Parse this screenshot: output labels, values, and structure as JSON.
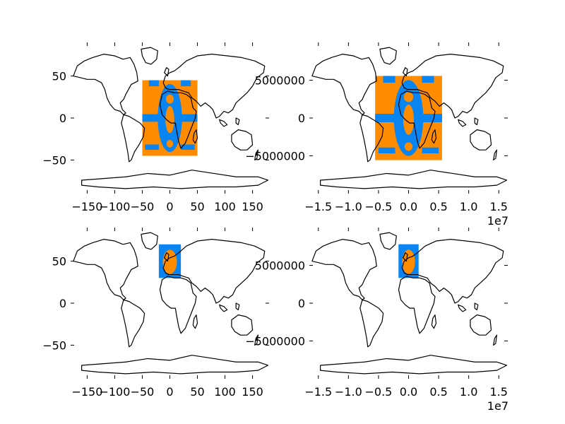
{
  "figure": {
    "title": ""
  },
  "colors": {
    "blue": "#0a84f0",
    "orange": "#ff8c00",
    "coastline": "#000000"
  },
  "panels": [
    {
      "id": "top-left",
      "projection": "plate-carree-degrees",
      "xlim": [
        -180,
        180
      ],
      "ylim": [
        -90,
        90
      ],
      "xticks": [
        -150,
        -100,
        -50,
        0,
        50,
        100,
        150
      ],
      "xtick_labels": [
        "−150",
        "−100",
        "−50",
        "0",
        "50",
        "100",
        "150"
      ],
      "yticks": [
        -50,
        0,
        50
      ],
      "ytick_labels": [
        "−50",
        "0",
        "50"
      ],
      "offset_label": "",
      "field_extent": {
        "lon": [
          -50,
          50
        ],
        "lat": [
          -45,
          45
        ]
      },
      "field_kind": "global"
    },
    {
      "id": "top-right",
      "projection": "plate-carree-meters",
      "xlim": [
        -16500000.0,
        16500000.0
      ],
      "ylim": [
        -10000000.0,
        10000000.0
      ],
      "xticks": [
        -15000000.0,
        -10000000.0,
        -5000000.0,
        0,
        5000000.0,
        10000000.0,
        15000000.0
      ],
      "xtick_labels": [
        "−1.5",
        "−1.0",
        "−0.5",
        "0.0",
        "0.5",
        "1.0",
        "1.5"
      ],
      "yticks": [
        -5000000,
        0,
        5000000
      ],
      "ytick_labels": [
        "−5000000",
        "0",
        "5000000"
      ],
      "offset_label": "1e7",
      "field_extent": {
        "lon": [
          -50,
          50
        ],
        "lat": [
          -50,
          50
        ]
      },
      "field_kind": "global"
    },
    {
      "id": "bottom-left",
      "projection": "plate-carree-degrees",
      "xlim": [
        -180,
        180
      ],
      "ylim": [
        -90,
        90
      ],
      "xticks": [
        -150,
        -100,
        -50,
        0,
        50,
        100,
        150
      ],
      "xtick_labels": [
        "−150",
        "−100",
        "−50",
        "0",
        "50",
        "100",
        "150"
      ],
      "yticks": [
        -50,
        0,
        50
      ],
      "ytick_labels": [
        "−50",
        "0",
        "50"
      ],
      "offset_label": "",
      "field_extent": {
        "lon": [
          -20,
          20
        ],
        "lat": [
          30,
          70
        ]
      },
      "field_kind": "regional"
    },
    {
      "id": "bottom-right",
      "projection": "plate-carree-meters",
      "xlim": [
        -16500000.0,
        16500000.0
      ],
      "ylim": [
        -10000000.0,
        10000000.0
      ],
      "xticks": [
        -15000000.0,
        -10000000.0,
        -5000000.0,
        0,
        5000000.0,
        10000000.0,
        15000000.0
      ],
      "xtick_labels": [
        "−1.5",
        "−1.0",
        "−0.5",
        "0.0",
        "0.5",
        "1.0",
        "1.5"
      ],
      "yticks": [
        -5000000,
        0,
        5000000
      ],
      "ytick_labels": [
        "−5000000",
        "0",
        "5000000"
      ],
      "offset_label": "1e7",
      "field_extent": {
        "lon": [
          -15,
          15
        ],
        "lat": [
          30,
          70
        ]
      },
      "field_kind": "regional"
    }
  ]
}
